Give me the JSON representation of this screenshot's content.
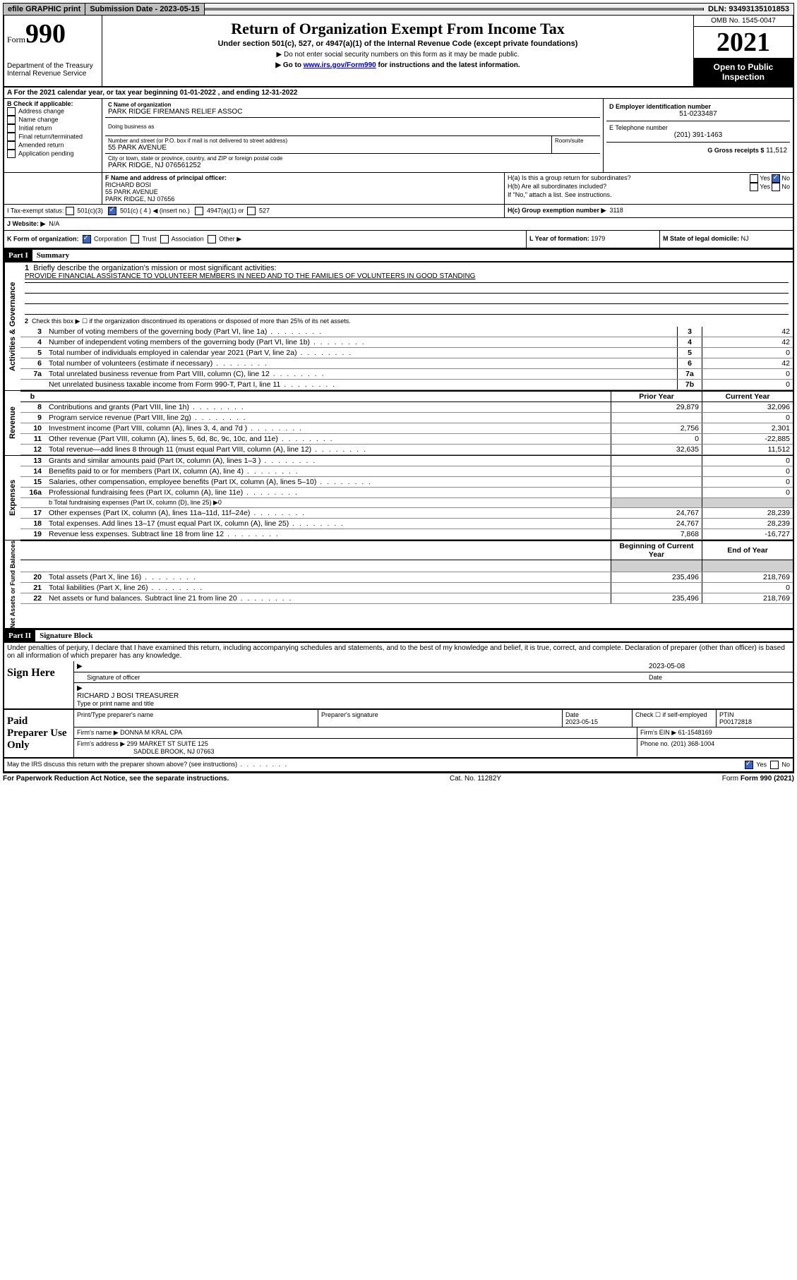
{
  "topbar": {
    "efile": "efile GRAPHIC print",
    "submission_label": "Submission Date - 2023-05-15",
    "dln": "DLN: 93493135101853"
  },
  "header": {
    "form_word": "Form",
    "form_num": "990",
    "dept": "Department of the Treasury",
    "irs": "Internal Revenue Service",
    "title": "Return of Organization Exempt From Income Tax",
    "sub": "Under section 501(c), 527, or 4947(a)(1) of the Internal Revenue Code (except private foundations)",
    "note1": "▶ Do not enter social security numbers on this form as it may be made public.",
    "note2_pre": "▶ Go to ",
    "note2_link": "www.irs.gov/Form990",
    "note2_post": " for instructions and the latest information.",
    "omb": "OMB No. 1545-0047",
    "year": "2021",
    "open": "Open to Public Inspection"
  },
  "period": {
    "text_a": "A For the 2021 calendar year, or tax year beginning ",
    "begin": "01-01-2022",
    "mid": " , and ending ",
    "end": "12-31-2022"
  },
  "boxB": {
    "label": "B Check if applicable:",
    "items": [
      "Address change",
      "Name change",
      "Initial return",
      "Final return/terminated",
      "Amended return",
      "Application pending"
    ]
  },
  "boxC": {
    "name_lbl": "C Name of organization",
    "name": "PARK RIDGE FIREMANS RELIEF ASSOC",
    "dba_lbl": "Doing business as",
    "addr_lbl": "Number and street (or P.O. box if mail is not delivered to street address)",
    "room_lbl": "Room/suite",
    "addr": "55 PARK AVENUE",
    "city_lbl": "City or town, state or province, country, and ZIP or foreign postal code",
    "city": "PARK RIDGE, NJ  076561252"
  },
  "boxD": {
    "lbl": "D Employer identification number",
    "val": "51-0233487"
  },
  "boxE": {
    "lbl": "E Telephone number",
    "val": "(201) 391-1463"
  },
  "boxG": {
    "lbl": "G Gross receipts $",
    "val": "11,512"
  },
  "boxF": {
    "lbl": "F Name and address of principal officer:",
    "name": "RICHARD BOSI",
    "addr1": "55 PARK AVENUE",
    "addr2": "PARK RIDGE, NJ  07656"
  },
  "boxH": {
    "ha": "H(a) Is this a group return for subordinates?",
    "ha_yes": "Yes",
    "ha_no": "No",
    "hb": "H(b) Are all subordinates included?",
    "hb_note": "If \"No,\" attach a list. See instructions.",
    "hc": "H(c) Group exemption number ▶",
    "hc_val": "3118"
  },
  "boxI": {
    "lbl": "I   Tax-exempt status:",
    "c3": "501(c)(3)",
    "c4": "501(c) ( 4 ) ◀ (insert no.)",
    "a1": "4947(a)(1) or",
    "s527": "527"
  },
  "boxJ": {
    "lbl": "J   Website: ▶",
    "val": "N/A"
  },
  "boxK": {
    "lbl": "K Form of organization:",
    "corp": "Corporation",
    "trust": "Trust",
    "assoc": "Association",
    "other": "Other ▶"
  },
  "boxL": {
    "lbl": "L Year of formation:",
    "val": "1979"
  },
  "boxM": {
    "lbl": "M State of legal domicile:",
    "val": "NJ"
  },
  "part1": {
    "hdr": "Part I",
    "title": "Summary",
    "l1": "Briefly describe the organization's mission or most significant activities:",
    "mission": "PROVIDE FINANCIAL ASSISTANCE TO VOLUNTEER MEMBERS IN NEED AND TO THE FAMILIES OF VOLUNTEERS IN GOOD STANDING",
    "l2": "Check this box ▶ ☐  if the organization discontinued its operations or disposed of more than 25% of its net assets.",
    "rows_a": [
      {
        "n": "3",
        "d": "Number of voting members of the governing body (Part VI, line 1a)",
        "b": "3",
        "v": "42"
      },
      {
        "n": "4",
        "d": "Number of independent voting members of the governing body (Part VI, line 1b)",
        "b": "4",
        "v": "42"
      },
      {
        "n": "5",
        "d": "Total number of individuals employed in calendar year 2021 (Part V, line 2a)",
        "b": "5",
        "v": "0"
      },
      {
        "n": "6",
        "d": "Total number of volunteers (estimate if necessary)",
        "b": "6",
        "v": "42"
      },
      {
        "n": "7a",
        "d": "Total unrelated business revenue from Part VIII, column (C), line 12",
        "b": "7a",
        "v": "0"
      },
      {
        "n": "",
        "d": "Net unrelated business taxable income from Form 990-T, Part I, line 11",
        "b": "7b",
        "v": "0"
      }
    ],
    "col_prior": "Prior Year",
    "col_curr": "Current Year",
    "rows_rev": [
      {
        "n": "8",
        "d": "Contributions and grants (Part VIII, line 1h)",
        "p": "29,879",
        "c": "32,096"
      },
      {
        "n": "9",
        "d": "Program service revenue (Part VIII, line 2g)",
        "p": "",
        "c": "0"
      },
      {
        "n": "10",
        "d": "Investment income (Part VIII, column (A), lines 3, 4, and 7d )",
        "p": "2,756",
        "c": "2,301"
      },
      {
        "n": "11",
        "d": "Other revenue (Part VIII, column (A), lines 5, 6d, 8c, 9c, 10c, and 11e)",
        "p": "0",
        "c": "-22,885"
      },
      {
        "n": "12",
        "d": "Total revenue—add lines 8 through 11 (must equal Part VIII, column (A), line 12)",
        "p": "32,635",
        "c": "11,512"
      }
    ],
    "rows_exp": [
      {
        "n": "13",
        "d": "Grants and similar amounts paid (Part IX, column (A), lines 1–3 )",
        "p": "",
        "c": "0"
      },
      {
        "n": "14",
        "d": "Benefits paid to or for members (Part IX, column (A), line 4)",
        "p": "",
        "c": "0"
      },
      {
        "n": "15",
        "d": "Salaries, other compensation, employee benefits (Part IX, column (A), lines 5–10)",
        "p": "",
        "c": "0"
      },
      {
        "n": "16a",
        "d": "Professional fundraising fees (Part IX, column (A), line 11e)",
        "p": "",
        "c": "0"
      }
    ],
    "l16b": "b   Total fundraising expenses (Part IX, column (D), line 25) ▶0",
    "rows_exp2": [
      {
        "n": "17",
        "d": "Other expenses (Part IX, column (A), lines 11a–11d, 11f–24e)",
        "p": "24,767",
        "c": "28,239"
      },
      {
        "n": "18",
        "d": "Total expenses. Add lines 13–17 (must equal Part IX, column (A), line 25)",
        "p": "24,767",
        "c": "28,239"
      },
      {
        "n": "19",
        "d": "Revenue less expenses. Subtract line 18 from line 12",
        "p": "7,868",
        "c": "-16,727"
      }
    ],
    "col_begin": "Beginning of Current Year",
    "col_end": "End of Year",
    "rows_net": [
      {
        "n": "20",
        "d": "Total assets (Part X, line 16)",
        "p": "235,496",
        "c": "218,769"
      },
      {
        "n": "21",
        "d": "Total liabilities (Part X, line 26)",
        "p": "",
        "c": "0"
      },
      {
        "n": "22",
        "d": "Net assets or fund balances. Subtract line 21 from line 20",
        "p": "235,496",
        "c": "218,769"
      }
    ],
    "vlab_a": "Activities & Governance",
    "vlab_r": "Revenue",
    "vlab_e": "Expenses",
    "vlab_n": "Net Assets or Fund Balances"
  },
  "part2": {
    "hdr": "Part II",
    "title": "Signature Block",
    "decl": "Under penalties of perjury, I declare that I have examined this return, including accompanying schedules and statements, and to the best of my knowledge and belief, it is true, correct, and complete. Declaration of preparer (other than officer) is based on all information of which preparer has any knowledge.",
    "sign_here": "Sign Here",
    "sig_officer": "Signature of officer",
    "sig_date": "Date",
    "sig_date_val": "2023-05-08",
    "officer_name": "RICHARD J BOSI TREASURER",
    "type_name": "Type or print name and title",
    "paid": "Paid Preparer Use Only",
    "prep_name_lbl": "Print/Type preparer's name",
    "prep_sig_lbl": "Preparer's signature",
    "prep_date_lbl": "Date",
    "prep_date": "2023-05-15",
    "check_self": "Check ☐ if self-employed",
    "ptin_lbl": "PTIN",
    "ptin": "P00172818",
    "firm_name_lbl": "Firm's name    ▶",
    "firm_name": "DONNA M KRAL CPA",
    "firm_ein_lbl": "Firm's EIN ▶",
    "firm_ein": "61-1548169",
    "firm_addr_lbl": "Firm's address ▶",
    "firm_addr1": "299 MARKET ST SUITE 125",
    "firm_addr2": "SADDLE BROOK, NJ  07663",
    "phone_lbl": "Phone no.",
    "phone": "(201) 368-1004",
    "discuss": "May the IRS discuss this return with the preparer shown above? (see instructions)",
    "yes": "Yes",
    "no": "No"
  },
  "footer": {
    "left": "For Paperwork Reduction Act Notice, see the separate instructions.",
    "mid": "Cat. No. 11282Y",
    "right": "Form 990 (2021)"
  }
}
